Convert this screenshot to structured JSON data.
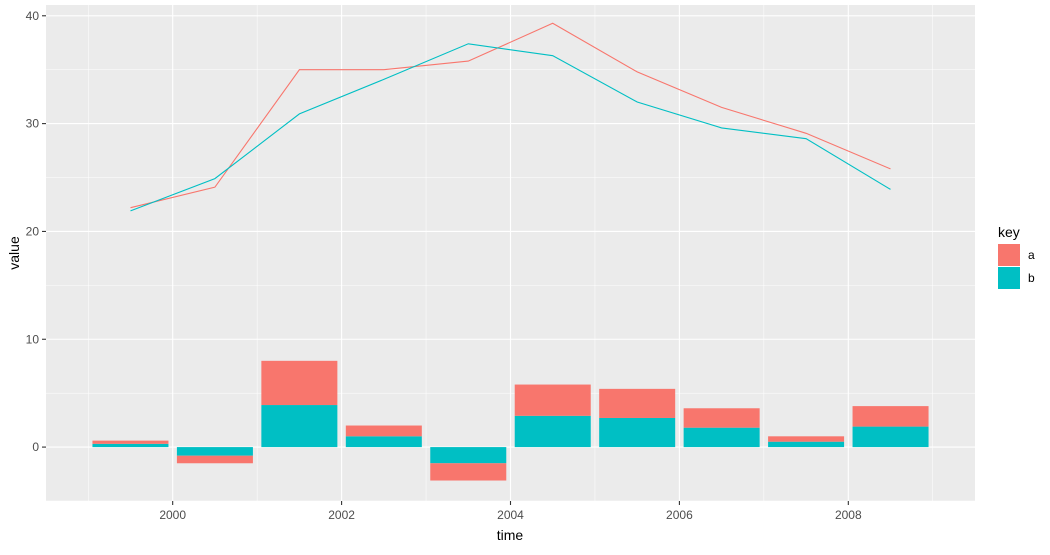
{
  "chart_data": {
    "type": "bar",
    "xlabel": "time",
    "ylabel": "value",
    "xlim": [
      1998.5,
      2009.5
    ],
    "ylim": [
      -5,
      41
    ],
    "x_ticks": [
      2000,
      2002,
      2004,
      2006,
      2008
    ],
    "x_tick_labels": [
      "2000",
      "2002",
      "2004",
      "2006",
      "2008"
    ],
    "y_ticks": [
      0,
      10,
      20,
      30,
      40
    ],
    "y_tick_labels": [
      "0",
      "10",
      "20",
      "30",
      "40"
    ],
    "grid": true,
    "legend": {
      "title": "key",
      "placement": "right",
      "entries": [
        {
          "label": "a",
          "color": "#F8766D"
        },
        {
          "label": "b",
          "color": "#00BFC4"
        }
      ]
    },
    "bars": {
      "stacked": true,
      "x": [
        1999.5,
        2000.5,
        2001.5,
        2002.5,
        2003.5,
        2004.5,
        2005.5,
        2006.5,
        2007.5,
        2008.5
      ],
      "series": [
        {
          "name": "a",
          "color": "#F8766D",
          "values": [
            0.3,
            -0.7,
            4.1,
            1.0,
            -1.6,
            2.9,
            2.7,
            1.8,
            0.5,
            1.9
          ]
        },
        {
          "name": "b",
          "color": "#00BFC4",
          "values": [
            0.3,
            -0.8,
            3.9,
            1.0,
            -1.5,
            2.9,
            2.7,
            1.8,
            0.5,
            1.9
          ]
        }
      ]
    },
    "lines": {
      "x": [
        1999.5,
        2000.5,
        2001.5,
        2002.5,
        2003.5,
        2004.5,
        2005.5,
        2006.5,
        2007.5,
        2008.5
      ],
      "series": [
        {
          "name": "a",
          "color": "#F8766D",
          "values": [
            22.2,
            24.1,
            35.0,
            35.0,
            35.8,
            39.3,
            34.8,
            31.5,
            29.1,
            25.8
          ]
        },
        {
          "name": "b",
          "color": "#00BFC4",
          "values": [
            21.9,
            24.9,
            30.9,
            34.1,
            37.4,
            36.3,
            32.0,
            29.6,
            28.6,
            23.9
          ]
        }
      ]
    }
  }
}
